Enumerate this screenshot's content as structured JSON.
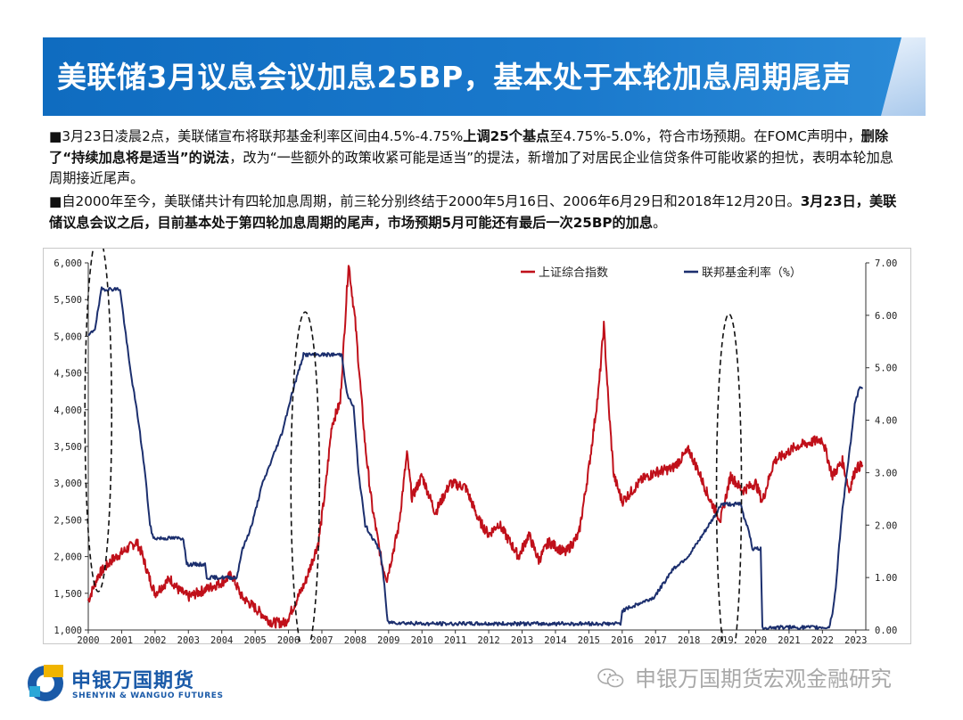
{
  "header": {
    "title": "美联储3月议息会议加息25BP，基本处于本轮加息周期尾声"
  },
  "body": {
    "p1": [
      {
        "t": "■3月23日凌晨2点，美联储宣布将联邦基金利率区间由4.5%-4.75%",
        "b": false
      },
      {
        "t": "上调25个基点",
        "b": true
      },
      {
        "t": "至4.75%-5.0%，符合市场预期。在FOMC声明中，",
        "b": false
      },
      {
        "t": "删除了“持续加息将是适当”的说法",
        "b": true
      },
      {
        "t": "，改为“一些额外的政策收紧可能是适当”的提法，新增加了对居民企业信贷条件可能收紧的担忧，表明本轮加息周期接近尾声。",
        "b": false
      }
    ],
    "p2": [
      {
        "t": "■自2000年至今，美联储共计有四轮加息周期，前三轮分别终结于2000年5月16日、2006年6月29日和2018年12月20日。",
        "b": false
      },
      {
        "t": "3月23日，美联储议息会议之后，目前基本处于第四轮加息周期的尾声，市场预期5月可能还有最后一次25BP的加息",
        "b": true
      },
      {
        "t": "。",
        "b": false
      }
    ]
  },
  "chart_data": {
    "type": "line",
    "x_ticks": [
      "2000",
      "2001",
      "2002",
      "2003",
      "2004",
      "2005",
      "2006",
      "2007",
      "2008",
      "2009",
      "2010",
      "2011",
      "2012",
      "2013",
      "2014",
      "2015",
      "2016",
      "2017",
      "2018",
      "2019",
      "2020",
      "2021",
      "2022",
      "2023"
    ],
    "y_left_ticks": [
      "1,000",
      "1,500",
      "2,000",
      "2,500",
      "3,000",
      "3,500",
      "4,000",
      "4,500",
      "5,000",
      "5,500",
      "6,000"
    ],
    "y_right_ticks": [
      "0.00",
      "1.00",
      "2.00",
      "3.00",
      "4.00",
      "5.00",
      "6.00",
      "7.00"
    ],
    "ylim_left": [
      1000,
      6000
    ],
    "ylim_right": [
      0,
      7
    ],
    "xlim": [
      2000,
      2023.3
    ],
    "legend_position": "top",
    "series": [
      {
        "name": "上证综合指数",
        "axis": "left",
        "color": "#c0101a",
        "points": [
          [
            2000.0,
            1400
          ],
          [
            2000.3,
            1750
          ],
          [
            2000.7,
            1950
          ],
          [
            2001.0,
            2050
          ],
          [
            2001.45,
            2200
          ],
          [
            2001.6,
            2050
          ],
          [
            2001.8,
            1750
          ],
          [
            2002.0,
            1500
          ],
          [
            2002.45,
            1700
          ],
          [
            2002.7,
            1550
          ],
          [
            2003.0,
            1450
          ],
          [
            2003.5,
            1550
          ],
          [
            2004.0,
            1650
          ],
          [
            2004.3,
            1750
          ],
          [
            2004.6,
            1450
          ],
          [
            2005.0,
            1300
          ],
          [
            2005.5,
            1100
          ],
          [
            2005.9,
            1100
          ],
          [
            2006.0,
            1180
          ],
          [
            2006.5,
            1650
          ],
          [
            2006.9,
            2200
          ],
          [
            2007.1,
            2900
          ],
          [
            2007.3,
            3800
          ],
          [
            2007.55,
            4100
          ],
          [
            2007.8,
            6000
          ],
          [
            2008.0,
            5200
          ],
          [
            2008.3,
            3500
          ],
          [
            2008.5,
            2700
          ],
          [
            2008.8,
            1900
          ],
          [
            2008.95,
            1700
          ],
          [
            2009.3,
            2400
          ],
          [
            2009.55,
            3400
          ],
          [
            2009.7,
            2800
          ],
          [
            2010.0,
            3100
          ],
          [
            2010.4,
            2600
          ],
          [
            2010.85,
            3000
          ],
          [
            2011.3,
            2950
          ],
          [
            2011.7,
            2500
          ],
          [
            2012.0,
            2300
          ],
          [
            2012.3,
            2450
          ],
          [
            2012.9,
            2000
          ],
          [
            2013.2,
            2300
          ],
          [
            2013.5,
            1950
          ],
          [
            2013.8,
            2200
          ],
          [
            2014.3,
            2050
          ],
          [
            2014.7,
            2300
          ],
          [
            2015.0,
            3200
          ],
          [
            2015.3,
            4300
          ],
          [
            2015.45,
            5150
          ],
          [
            2015.6,
            4000
          ],
          [
            2015.75,
            3100
          ],
          [
            2016.0,
            2750
          ],
          [
            2016.3,
            2900
          ],
          [
            2016.6,
            3050
          ],
          [
            2017.0,
            3150
          ],
          [
            2017.5,
            3200
          ],
          [
            2018.0,
            3450
          ],
          [
            2018.3,
            3150
          ],
          [
            2018.6,
            2800
          ],
          [
            2018.95,
            2500
          ],
          [
            2019.25,
            3100
          ],
          [
            2019.6,
            2900
          ],
          [
            2020.0,
            3000
          ],
          [
            2020.2,
            2750
          ],
          [
            2020.55,
            3300
          ],
          [
            2020.9,
            3400
          ],
          [
            2021.2,
            3500
          ],
          [
            2021.6,
            3550
          ],
          [
            2022.0,
            3600
          ],
          [
            2022.3,
            3100
          ],
          [
            2022.6,
            3300
          ],
          [
            2022.8,
            2900
          ],
          [
            2023.0,
            3200
          ],
          [
            2023.2,
            3250
          ]
        ]
      },
      {
        "name": "联邦基金利率（%）",
        "axis": "right",
        "color": "#1c2f6e",
        "points": [
          [
            2000.0,
            5.6
          ],
          [
            2000.2,
            5.75
          ],
          [
            2000.4,
            6.5
          ],
          [
            2000.5,
            6.5
          ],
          [
            2000.95,
            6.5
          ],
          [
            2001.05,
            6.0
          ],
          [
            2001.25,
            5.0
          ],
          [
            2001.5,
            4.0
          ],
          [
            2001.7,
            3.0
          ],
          [
            2001.85,
            2.0
          ],
          [
            2001.95,
            1.75
          ],
          [
            2002.85,
            1.75
          ],
          [
            2002.95,
            1.25
          ],
          [
            2003.5,
            1.25
          ],
          [
            2003.55,
            1.0
          ],
          [
            2004.45,
            1.0
          ],
          [
            2004.6,
            1.5
          ],
          [
            2004.9,
            2.0
          ],
          [
            2005.2,
            2.75
          ],
          [
            2005.5,
            3.25
          ],
          [
            2005.8,
            3.75
          ],
          [
            2006.1,
            4.5
          ],
          [
            2006.45,
            5.25
          ],
          [
            2007.6,
            5.25
          ],
          [
            2007.75,
            4.5
          ],
          [
            2007.95,
            4.25
          ],
          [
            2008.1,
            3.0
          ],
          [
            2008.3,
            2.0
          ],
          [
            2008.75,
            1.5
          ],
          [
            2008.85,
            1.0
          ],
          [
            2008.97,
            0.15
          ],
          [
            2010.0,
            0.12
          ],
          [
            2015.95,
            0.12
          ],
          [
            2016.0,
            0.37
          ],
          [
            2016.95,
            0.62
          ],
          [
            2017.25,
            0.9
          ],
          [
            2017.5,
            1.15
          ],
          [
            2017.97,
            1.4
          ],
          [
            2018.25,
            1.65
          ],
          [
            2018.5,
            1.9
          ],
          [
            2018.75,
            2.15
          ],
          [
            2018.97,
            2.4
          ],
          [
            2019.55,
            2.4
          ],
          [
            2019.65,
            2.15
          ],
          [
            2019.8,
            1.9
          ],
          [
            2019.9,
            1.55
          ],
          [
            2020.15,
            1.55
          ],
          [
            2020.2,
            0.05
          ],
          [
            2022.2,
            0.05
          ],
          [
            2022.3,
            0.33
          ],
          [
            2022.4,
            0.8
          ],
          [
            2022.5,
            1.6
          ],
          [
            2022.6,
            2.3
          ],
          [
            2022.75,
            3.1
          ],
          [
            2022.9,
            3.85
          ],
          [
            2022.97,
            4.3
          ],
          [
            2023.1,
            4.6
          ],
          [
            2023.2,
            4.6
          ]
        ]
      }
    ],
    "annotations": [
      {
        "type": "dashed-ellipse",
        "center_year": 2000.3,
        "center_value_left": 3950
      },
      {
        "type": "dashed-ellipse",
        "center_year": 2006.5,
        "center_value_left": 3000
      },
      {
        "type": "dashed-ellipse",
        "center_year": 2019.2,
        "center_value_left": 2900
      }
    ]
  },
  "footer": {
    "logo_cn": "申银万国期货",
    "logo_en": "SHENYIN & WANGUO FUTURES",
    "watermark": "申银万国期货宏观金融研究",
    "logo_colors": [
      "#1a5aa8",
      "#f0b400",
      "#2aa7d8"
    ]
  }
}
